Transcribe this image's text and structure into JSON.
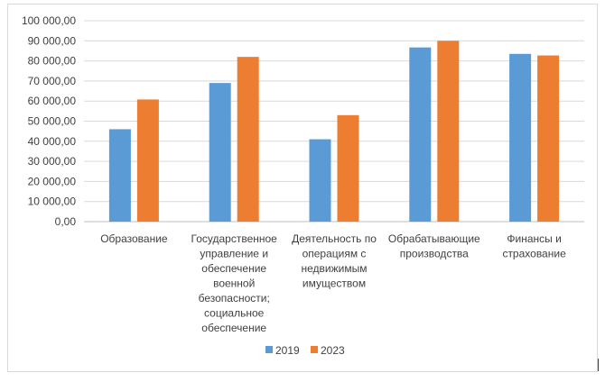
{
  "chart_data": {
    "type": "bar",
    "title": "",
    "xlabel": "",
    "ylabel": "",
    "ylim": [
      0,
      100000
    ],
    "ytick_step": 10000,
    "ytick_labels": [
      "0,00",
      "10 000,00",
      "20 000,00",
      "30 000,00",
      "40 000,00",
      "50 000,00",
      "60 000,00",
      "70 000,00",
      "80 000,00",
      "90 000,00",
      "100 000,00"
    ],
    "grid": true,
    "legend_position": "bottom",
    "categories": [
      [
        "Образование"
      ],
      [
        "Государственное",
        "управление и",
        "обеспечение",
        "военной",
        "безопасности;",
        "социальное",
        "обеспечение"
      ],
      [
        "Деятельность по",
        "операциям с",
        "недвижимым",
        "имуществом"
      ],
      [
        "Обрабатывающие",
        "производства"
      ],
      [
        "Финансы и",
        "страхование"
      ]
    ],
    "series": [
      {
        "name": "2019",
        "color": "#5b9bd5",
        "values": [
          46000,
          69000,
          41000,
          86700,
          83500
        ]
      },
      {
        "name": "2023",
        "color": "#ed7d31",
        "values": [
          60800,
          82000,
          53000,
          90000,
          82700
        ]
      }
    ]
  }
}
